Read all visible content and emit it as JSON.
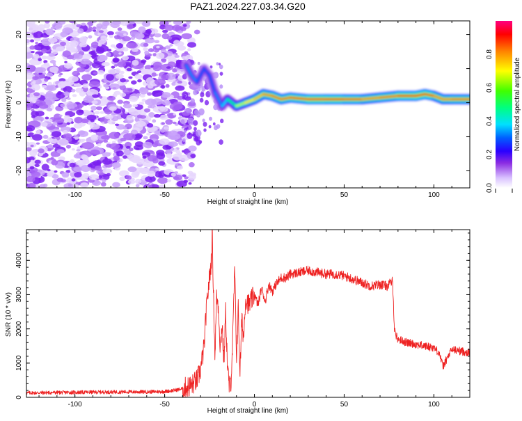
{
  "figure_title": "PAZ1.2024.227.03.34.G20",
  "chart_data": [
    {
      "type": "heatmap",
      "xlabel": "Height of straight line (km)",
      "ylabel": "Frequency (Hz)",
      "xlim": [
        -127,
        120
      ],
      "ylim": [
        -25,
        24
      ],
      "xticks": [
        -100,
        -50,
        0,
        50,
        100
      ],
      "yticks": [
        -20,
        -10,
        0,
        10,
        20
      ],
      "colorbar": {
        "label": "Normalized spectral amplitude",
        "range": [
          0,
          1
        ],
        "ticks": [
          0.0,
          0.2,
          0.4,
          0.6,
          0.8
        ],
        "colormap": [
          "#f3e8ff",
          "#7b00ff",
          "#0000ff",
          "#00ffff",
          "#00ff00",
          "#ffff00",
          "#ff8000",
          "#ff0000",
          "#ff0080"
        ]
      },
      "noise_region_x": [
        -127,
        -38
      ],
      "ridge": [
        {
          "x": -38,
          "y": 11,
          "amp": 0.3
        },
        {
          "x": -35,
          "y": 8,
          "amp": 0.35
        },
        {
          "x": -32,
          "y": 6,
          "amp": 0.3
        },
        {
          "x": -28,
          "y": 10,
          "amp": 0.28
        },
        {
          "x": -25,
          "y": 8,
          "amp": 0.28
        },
        {
          "x": -22,
          "y": 3,
          "amp": 0.3
        },
        {
          "x": -18,
          "y": -1,
          "amp": 0.35
        },
        {
          "x": -15,
          "y": 1,
          "amp": 0.4
        },
        {
          "x": -10,
          "y": -1,
          "amp": 0.55
        },
        {
          "x": -5,
          "y": 0,
          "amp": 0.75
        },
        {
          "x": 0,
          "y": 1,
          "amp": 0.7
        },
        {
          "x": 5,
          "y": 2.5,
          "amp": 0.85
        },
        {
          "x": 10,
          "y": 2,
          "amp": 0.8
        },
        {
          "x": 15,
          "y": 1,
          "amp": 0.9
        },
        {
          "x": 20,
          "y": 1.5,
          "amp": 0.8
        },
        {
          "x": 30,
          "y": 1,
          "amp": 0.95
        },
        {
          "x": 40,
          "y": 1,
          "amp": 0.95
        },
        {
          "x": 50,
          "y": 1,
          "amp": 0.9
        },
        {
          "x": 60,
          "y": 1,
          "amp": 0.85
        },
        {
          "x": 70,
          "y": 1.5,
          "amp": 0.8
        },
        {
          "x": 80,
          "y": 2,
          "amp": 0.9
        },
        {
          "x": 90,
          "y": 2,
          "amp": 0.9
        },
        {
          "x": 95,
          "y": 2.5,
          "amp": 0.95
        },
        {
          "x": 100,
          "y": 2,
          "amp": 0.85
        },
        {
          "x": 105,
          "y": 1,
          "amp": 0.8
        },
        {
          "x": 110,
          "y": 1,
          "amp": 0.85
        },
        {
          "x": 120,
          "y": 1,
          "amp": 0.85
        }
      ]
    },
    {
      "type": "line",
      "xlabel": "Height of straight line (km)",
      "ylabel": "SNR (10 * v/v)",
      "xlim": [
        -127,
        120
      ],
      "ylim": [
        0,
        4900
      ],
      "xticks": [
        -100,
        -50,
        0,
        50,
        100
      ],
      "yticks": [
        0,
        1000,
        2000,
        3000,
        4000
      ],
      "series": [
        {
          "color": "#ee2222",
          "x": [
            -127,
            -110,
            -90,
            -70,
            -60,
            -50,
            -45,
            -40,
            -35,
            -32,
            -30,
            -28,
            -27,
            -26,
            -25,
            -24,
            -23.5,
            -23,
            -22,
            -21,
            -20,
            -19,
            -18,
            -17,
            -16,
            -15,
            -14,
            -13,
            -12,
            -11,
            -10,
            -9,
            -8,
            -7,
            -6,
            -5,
            -3,
            0,
            2,
            4,
            6,
            8,
            10,
            12,
            15,
            18,
            20,
            25,
            30,
            35,
            40,
            45,
            50,
            55,
            60,
            65,
            70,
            74,
            77,
            78,
            79,
            80,
            85,
            90,
            95,
            100,
            103,
            105,
            110,
            115,
            120
          ],
          "y": [
            130,
            140,
            150,
            160,
            160,
            170,
            200,
            250,
            350,
            500,
            800,
            1500,
            2400,
            3000,
            3500,
            4000,
            4800,
            3500,
            1200,
            3000,
            2600,
            1400,
            2200,
            1000,
            2500,
            900,
            300,
            500,
            1800,
            3800,
            1200,
            2600,
            700,
            2300,
            1700,
            2900,
            2700,
            3000,
            2700,
            3200,
            2800,
            3300,
            3100,
            3300,
            3500,
            3500,
            3600,
            3650,
            3700,
            3650,
            3600,
            3600,
            3550,
            3450,
            3350,
            3250,
            3300,
            3250,
            3400,
            2000,
            1800,
            1700,
            1600,
            1550,
            1500,
            1450,
            1300,
            900,
            1400,
            1350,
            1300
          ]
        }
      ]
    }
  ]
}
